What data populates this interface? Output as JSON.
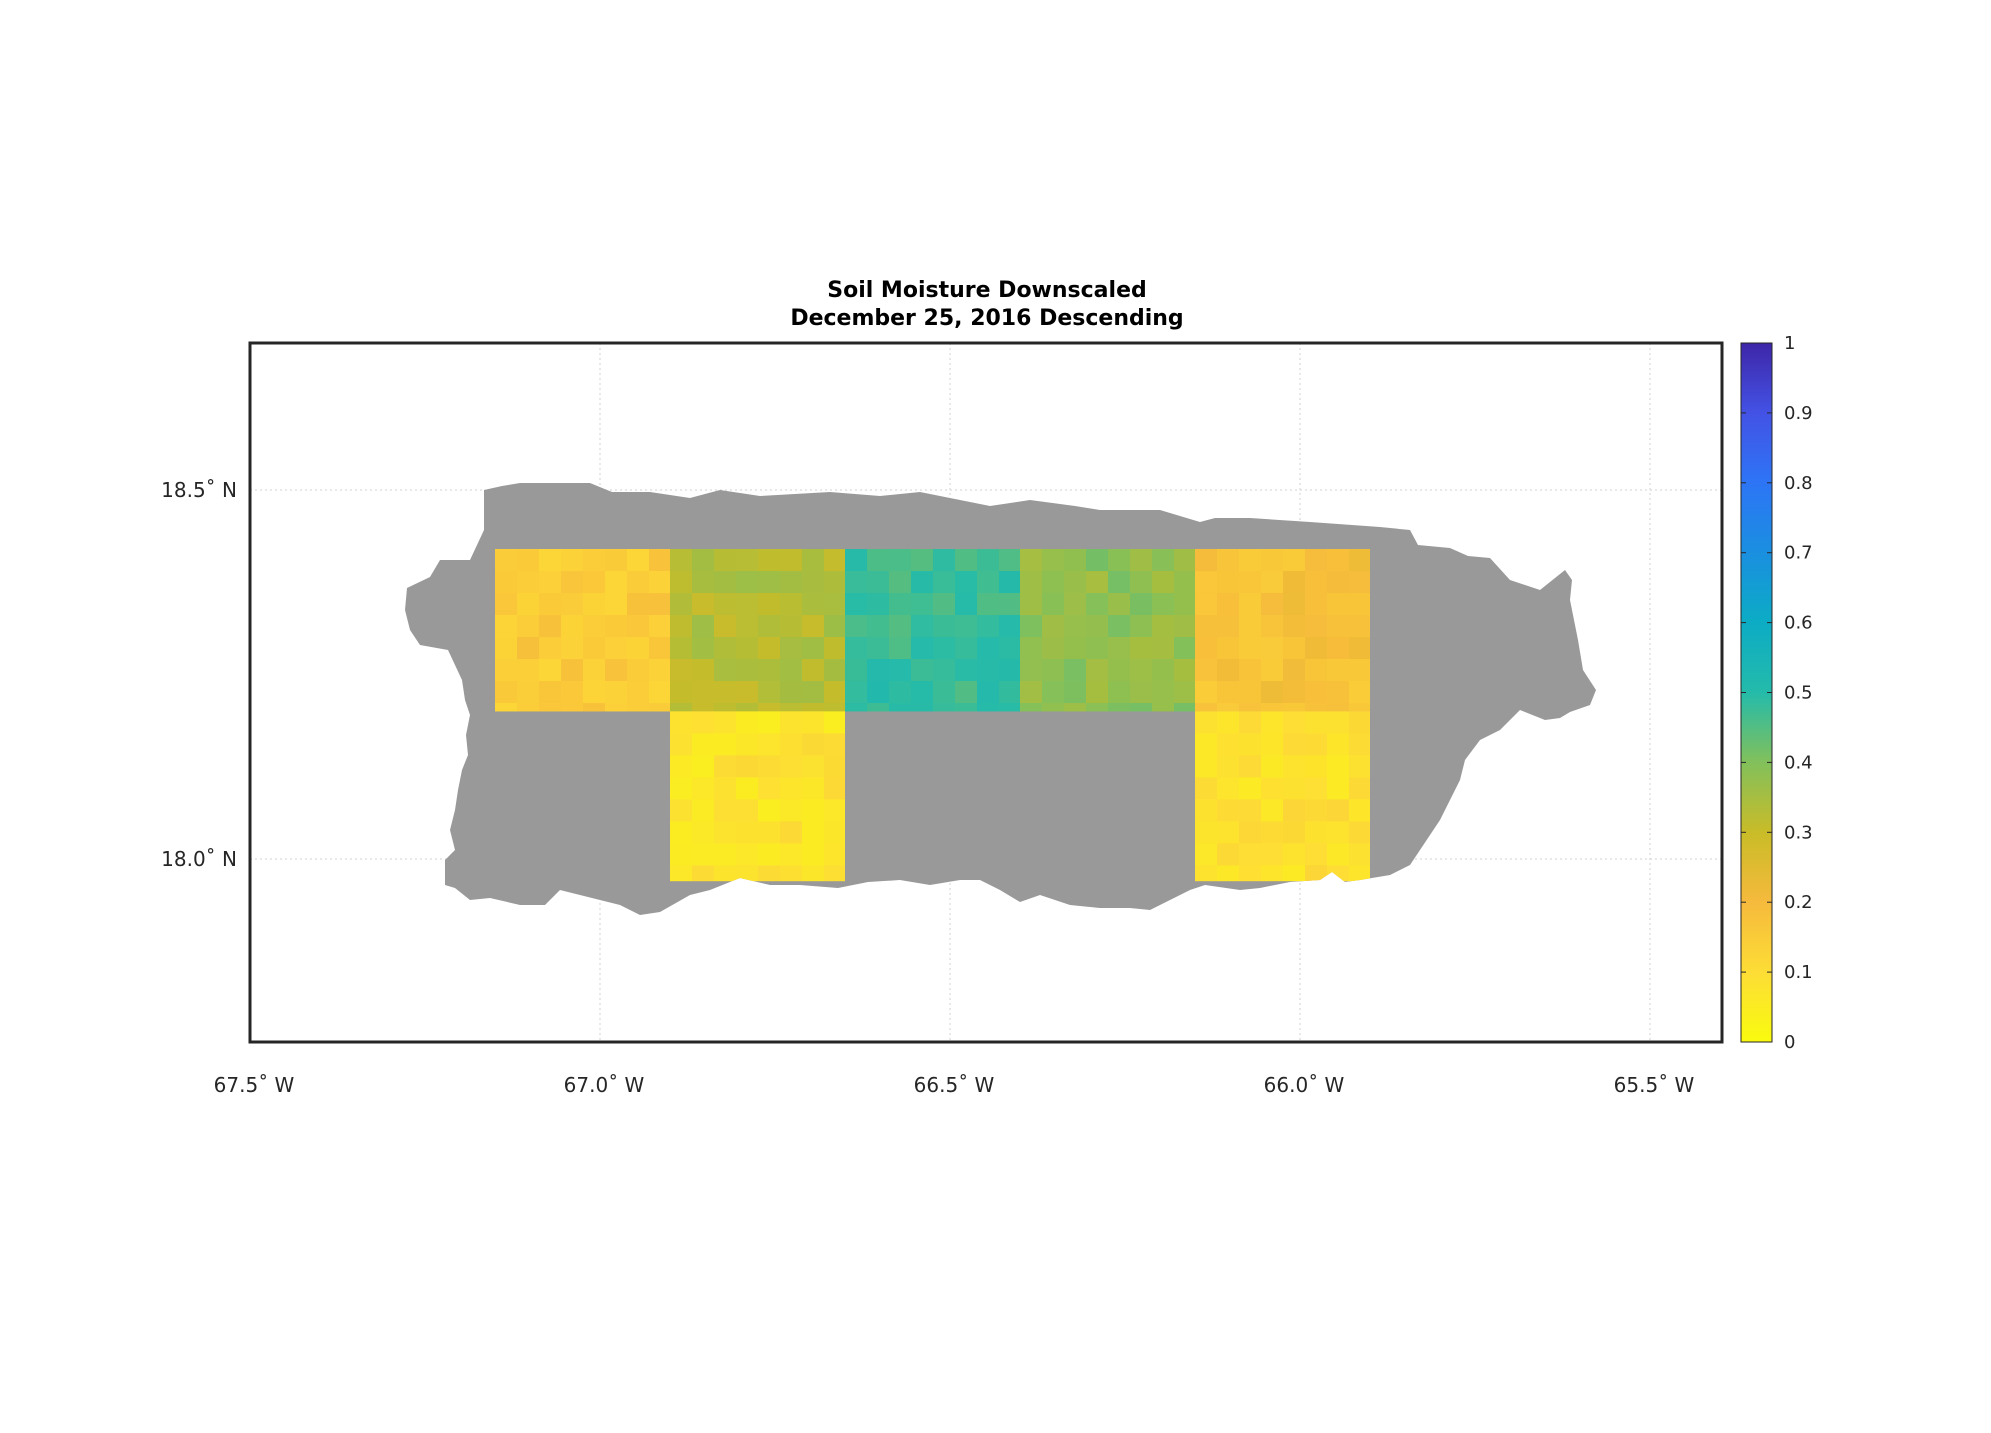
{
  "title": {
    "line1": "Soil Moisture Downscaled",
    "line2": "December 25, 2016 Descending"
  },
  "axes": {
    "x_ticks": [
      "67.5˚ W",
      "67.0˚ W",
      "66.5˚ W",
      "66.0˚ W",
      "65.5˚ W"
    ],
    "y_ticks": [
      "18.5˚ N",
      "18.0˚ N"
    ]
  },
  "colorbar": {
    "ticks": [
      "0",
      "0.1",
      "0.2",
      "0.3",
      "0.4",
      "0.5",
      "0.6",
      "0.7",
      "0.8",
      "0.9",
      "1"
    ],
    "range": [
      0,
      1
    ],
    "colormap": "parula"
  },
  "colors": {
    "land_no_data": "#999999",
    "frame": "#262626",
    "grid": "#d0d0d0"
  },
  "chart_data": {
    "type": "heatmap",
    "title": "Soil Moisture Downscaled\nDecember 25, 2016 Descending",
    "x_axis": {
      "ticks_deg": [
        -67.5,
        -67.0,
        -66.5,
        -66.0,
        -65.5
      ],
      "range": [
        -67.5,
        -65.4
      ]
    },
    "y_axis": {
      "ticks_deg": [
        18.5,
        18.0
      ],
      "range": [
        17.75,
        18.7
      ]
    },
    "value_range": [
      0,
      1
    ],
    "tiles": [
      {
        "lon": [
          -67.15,
          -66.9
        ],
        "lat": [
          18.2,
          18.42
        ],
        "mean": 0.15
      },
      {
        "lon": [
          -66.9,
          -66.65
        ],
        "lat": [
          18.2,
          18.42
        ],
        "mean": 0.33
      },
      {
        "lon": [
          -66.65,
          -66.4
        ],
        "lat": [
          18.2,
          18.42
        ],
        "mean": 0.48
      },
      {
        "lon": [
          -66.4,
          -66.15
        ],
        "lat": [
          18.2,
          18.42
        ],
        "mean": 0.38
      },
      {
        "lon": [
          -66.15,
          -65.9
        ],
        "lat": [
          18.2,
          18.42
        ],
        "mean": 0.18
      },
      {
        "lon": [
          -66.9,
          -66.65
        ],
        "lat": [
          17.97,
          18.2
        ],
        "mean": 0.08
      },
      {
        "lon": [
          -66.15,
          -65.9
        ],
        "lat": [
          17.97,
          18.2
        ],
        "mean": 0.09
      }
    ]
  }
}
